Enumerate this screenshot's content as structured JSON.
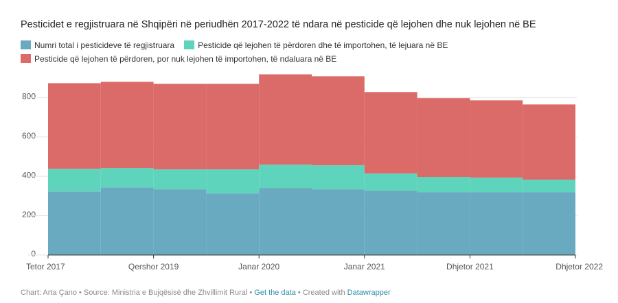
{
  "chart_data": {
    "type": "stacked-step-area",
    "title": "Pesticidet e regjistruara në Shqipëri në periudhën 2017-2022 të ndara në pesticide që lejohen dhe nuk lejohen në BE",
    "categories": [
      "Tetor 2017",
      null,
      "Qershor 2019",
      null,
      "Janar 2020",
      null,
      "Janar 2021",
      null,
      "Dhjetor 2021",
      null,
      "Dhjetor 2022"
    ],
    "series": [
      {
        "name": "Numri total i pesticideve të regjistruara",
        "color": "#6aaac0",
        "values": [
          323,
          344,
          334,
          313,
          341,
          334,
          327,
          320,
          320,
          320,
          320
        ]
      },
      {
        "name": "Pesticide që lejohen të përdoren dhe të importohen, të lejuara në BE",
        "color": "#5fd4bc",
        "values": [
          115,
          98,
          101,
          122,
          118,
          122,
          87,
          77,
          73,
          63,
          63
        ]
      },
      {
        "name": "Pesticide që lejohen të përdoren, por nuk lejohen të importohen, të ndaluara në BE",
        "color": "#da6b69",
        "values": [
          435,
          438,
          435,
          435,
          459,
          452,
          414,
          400,
          393,
          382,
          382
        ]
      }
    ],
    "ylim": [
      0,
      930
    ],
    "yticks": [
      0,
      200,
      400,
      600,
      800
    ],
    "grid": true,
    "footer": {
      "credit": "Chart: Arta Çano • Source: Ministria e Bujqësisë dhe Zhvillimit Rural •",
      "link": "Get the data",
      "created": "• Created with",
      "brand": "Datawrapper"
    }
  }
}
